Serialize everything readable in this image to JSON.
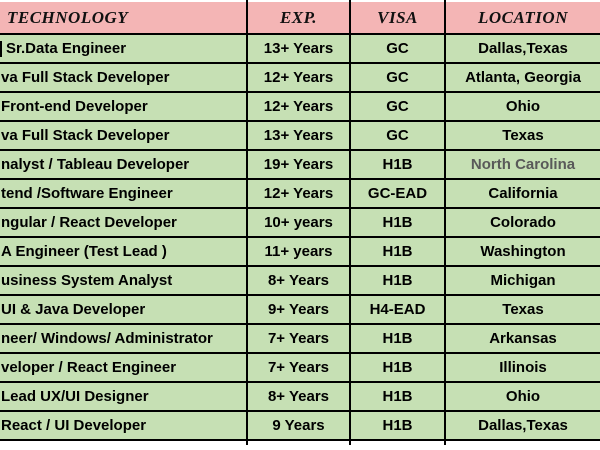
{
  "table": {
    "columns": [
      {
        "key": "technology",
        "label": "TECHNOLOGY"
      },
      {
        "key": "exp",
        "label": "EXP."
      },
      {
        "key": "visa",
        "label": "VISA"
      },
      {
        "key": "location",
        "label": "LOCATION"
      }
    ],
    "rows": [
      {
        "technology": "Sr.Data Engineer",
        "exp": "13+ Years",
        "visa": "GC",
        "location": "Dallas,Texas"
      },
      {
        "technology": "va Full Stack Developer",
        "exp": "12+ Years",
        "visa": "GC",
        "location": "Atlanta, Georgia"
      },
      {
        "technology": "Front-end Developer",
        "exp": "12+ Years",
        "visa": "GC",
        "location": "Ohio"
      },
      {
        "technology": "va Full Stack Developer",
        "exp": "13+ Years",
        "visa": "GC",
        "location": "Texas"
      },
      {
        "technology": "nalyst / Tableau Developer",
        "exp": "19+ Years",
        "visa": "H1B",
        "location": "North Carolina",
        "location_muted": true
      },
      {
        "technology": "tend /Software Engineer",
        "exp": "12+ Years",
        "visa": "GC-EAD",
        "location": "California"
      },
      {
        "technology": "ngular / React Developer",
        "exp": "10+ years",
        "visa": "H1B",
        "location": "Colorado"
      },
      {
        "technology": "A  Engineer (Test Lead )",
        "exp": "11+ years",
        "visa": "H1B",
        "location": "Washington"
      },
      {
        "technology": "usiness System Analyst",
        "exp": "8+ Years",
        "visa": "H1B",
        "location": "Michigan"
      },
      {
        "technology": "UI & Java Developer",
        "exp": "9+ Years",
        "visa": "H4-EAD",
        "location": "Texas"
      },
      {
        "technology": "neer/ Windows/ Administrator",
        "exp": "7+ Years",
        "visa": "H1B",
        "location": "Arkansas"
      },
      {
        "technology": "veloper / React Engineer",
        "exp": "7+ Years",
        "visa": "H1B",
        "location": "Illinois"
      },
      {
        "technology": "Lead UX/UI Designer",
        "exp": "8+ Years",
        "visa": "H1B",
        "location": "Ohio"
      },
      {
        "technology": "React / UI Developer",
        "exp": "9 Years",
        "visa": "H1B",
        "location": "Dallas,Texas"
      }
    ]
  },
  "colors": {
    "header_bg": "#f4b5b5",
    "row_bg": "#c6e0b4",
    "border": "#000000",
    "text": "#000000",
    "muted_text": "#595959"
  }
}
